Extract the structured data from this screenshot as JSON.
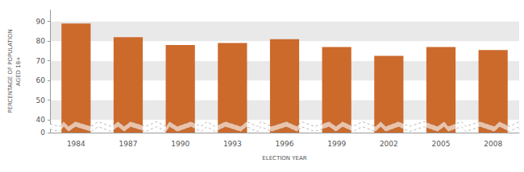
{
  "chart_data": {
    "type": "bar",
    "x_label": "ELECTION YEAR",
    "y_label": "PERCENTAGE OF POPULATION AGED 18+",
    "categories": [
      "1984",
      "1987",
      "1990",
      "1993",
      "1996",
      "1999",
      "2002",
      "2005",
      "2008"
    ],
    "values": [
      89,
      82,
      78,
      79,
      81,
      77,
      72.5,
      77,
      75.5
    ],
    "color": "#cc6a2c",
    "ylim": [
      0,
      96
    ],
    "yticks": [
      0,
      40,
      50,
      60,
      70,
      80,
      90
    ],
    "grid": true
  }
}
